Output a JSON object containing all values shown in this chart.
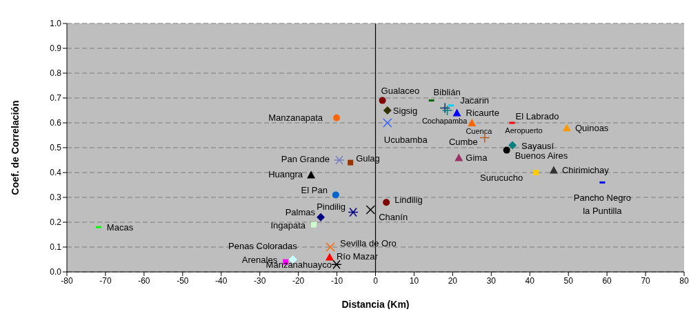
{
  "chart_data": {
    "type": "scatter",
    "xlabel": "Distancia  (Km)",
    "ylabel": "Coef. de Correlación",
    "xlim": [
      -80,
      80
    ],
    "xticks": [
      -80,
      -70,
      -60,
      -50,
      -40,
      -30,
      -20,
      -10,
      0,
      10,
      20,
      30,
      40,
      50,
      60,
      70,
      80
    ],
    "ylim": [
      0,
      1
    ],
    "yticks": [
      {
        "value": 0,
        "label": "0.0"
      },
      0.1,
      0.2,
      0.3,
      0.4,
      0.5,
      0.6,
      0.7,
      0.8,
      0.9,
      {
        "value": 1,
        "label": "1.0"
      }
    ],
    "grid": "y",
    "legend": false,
    "ref_lines": [
      {
        "axis": "x",
        "value": 0,
        "color": "#000000"
      }
    ],
    "series": [
      {
        "name": "Macas",
        "color": "#00ff00",
        "marker": "square",
        "x": [
          -71.8
        ],
        "values": [
          0.18
        ]
      },
      {
        "name": "Manzanapata",
        "color": "#ff6600",
        "marker": "circle",
        "x": [
          -10.1
        ],
        "values": [
          0.62
        ]
      },
      {
        "name": "Pan Grande",
        "color": "#7f7fbf",
        "marker": "cross",
        "x": [
          -9.4
        ],
        "values": [
          0.45
        ]
      },
      {
        "name": "Gulag",
        "color": "#993300",
        "marker": "square",
        "x": [
          -6.5
        ],
        "values": [
          0.44
        ]
      },
      {
        "name": "Huangra",
        "color": "#000000",
        "marker": "triangle",
        "x": [
          -16.7
        ],
        "values": [
          0.39
        ]
      },
      {
        "name": "El Pan",
        "color": "#0066cc",
        "marker": "circle",
        "x": [
          -10.3
        ],
        "values": [
          0.31
        ]
      },
      {
        "name": "Pindilig",
        "color": "#000080",
        "marker": "cross",
        "x": [
          -5.8
        ],
        "values": [
          0.24
        ]
      },
      {
        "name": "Chanín",
        "color": "#000000",
        "marker": "cross",
        "x": [
          -1.3
        ],
        "values": [
          0.25
        ]
      },
      {
        "name": "Palmas",
        "color": "#000080",
        "marker": "diamond",
        "x": [
          -14.2
        ],
        "values": [
          0.22
        ]
      },
      {
        "name": "Ingapata",
        "color": "#ccffcc",
        "marker": "square",
        "x": [
          -16
        ],
        "values": [
          0.19
        ]
      },
      {
        "name": "Sevilla de Oro",
        "color": "#ff6600",
        "marker": "cross",
        "x": [
          -11.7
        ],
        "values": [
          0.1
        ]
      },
      {
        "name": "Río  Mazar",
        "color": "#ff0000",
        "marker": "triangle",
        "x": [
          -11.9
        ],
        "values": [
          0.06
        ]
      },
      {
        "name": "Penas Coloradas",
        "color": "#ccffff",
        "marker": "diamond",
        "x": [
          -21.4
        ],
        "values": [
          0.05
        ]
      },
      {
        "name": "Arenales",
        "color": "#ff00ff",
        "marker": "square",
        "x": [
          -23.3
        ],
        "values": [
          0.04
        ]
      },
      {
        "name": "Manzanahuayco",
        "color": "#000000",
        "marker": "cross",
        "x": [
          -10.1
        ],
        "values": [
          0.03
        ]
      },
      {
        "name": "Gualaceo",
        "color": "#800000",
        "marker": "circle",
        "x": [
          1.8
        ],
        "values": [
          0.69
        ]
      },
      {
        "name": "Biblián",
        "color": "#006600",
        "marker": "square",
        "x": [
          14.5
        ],
        "values": [
          0.69
        ]
      },
      {
        "name": "Sigsig",
        "color": "#333300",
        "marker": "diamond",
        "x": [
          3.1
        ],
        "values": [
          0.65
        ]
      },
      {
        "name": "Ucubamba",
        "color": "#3366ff",
        "marker": "cross",
        "x": [
          3.1
        ],
        "values": [
          0.6
        ]
      },
      {
        "color": "#003366",
        "marker": "cross",
        "x": [
          18
        ],
        "values": [
          0.66
        ]
      },
      {
        "color": "#008080",
        "marker": "cross",
        "x": [
          18.6
        ],
        "values": [
          0.65
        ]
      },
      {
        "name": "Jacarin",
        "color": "#00ccff",
        "marker": "square",
        "x": [
          19.6
        ],
        "values": [
          0.67
        ]
      },
      {
        "name": "Ricaurte",
        "color": "#0000ff",
        "marker": "triangle",
        "x": [
          21.1
        ],
        "values": [
          0.64
        ]
      },
      {
        "name": "Cuenca",
        "color": "#ff6600",
        "marker": "triangle",
        "x": [
          25
        ],
        "values": [
          0.6
        ]
      },
      {
        "name": "Cumbe",
        "color": "#b35c2e",
        "marker": "cross",
        "x": [
          28.3
        ],
        "values": [
          0.54
        ]
      },
      {
        "name": "El Labrado",
        "color": "#ff0000",
        "marker": "square",
        "x": [
          35.4
        ],
        "values": [
          0.6
        ]
      },
      {
        "name": "Quinoas",
        "color": "#ff9900",
        "marker": "triangle",
        "x": [
          49.6
        ],
        "values": [
          0.58
        ]
      },
      {
        "name": "Sayausí",
        "color": "#008080",
        "marker": "diamond",
        "x": [
          35.5
        ],
        "values": [
          0.51
        ]
      },
      {
        "name": "Buenos Aires",
        "color": "#000000",
        "marker": "circle",
        "x": [
          34
        ],
        "values": [
          0.49
        ]
      },
      {
        "name": "Gima",
        "color": "#993366",
        "marker": "triangle",
        "x": [
          21.6
        ],
        "values": [
          0.46
        ]
      },
      {
        "name": "Surucucho",
        "color": "#ffcc00",
        "marker": "square",
        "x": [
          41.6
        ],
        "values": [
          0.4
        ]
      },
      {
        "name": "Chirimichay",
        "color": "#333333",
        "marker": "triangle",
        "x": [
          46.2
        ],
        "values": [
          0.41
        ]
      },
      {
        "name": "Lindilig",
        "color": "#800000",
        "marker": "circle",
        "x": [
          2.8
        ],
        "values": [
          0.28
        ]
      },
      {
        "name": "Pancho Negro",
        "color": "#0000ff",
        "marker": "square",
        "x": [
          58.8
        ],
        "values": [
          0.36
        ]
      }
    ],
    "annotations": [
      {
        "text": "Aeropuerto",
        "x": 35.4,
        "y": 0.6
      },
      {
        "text": "la Puntilla",
        "x": 58.8,
        "y": 0.36
      },
      {
        "text": "Cochapamba",
        "x": 25,
        "y": 0.6
      }
    ]
  }
}
